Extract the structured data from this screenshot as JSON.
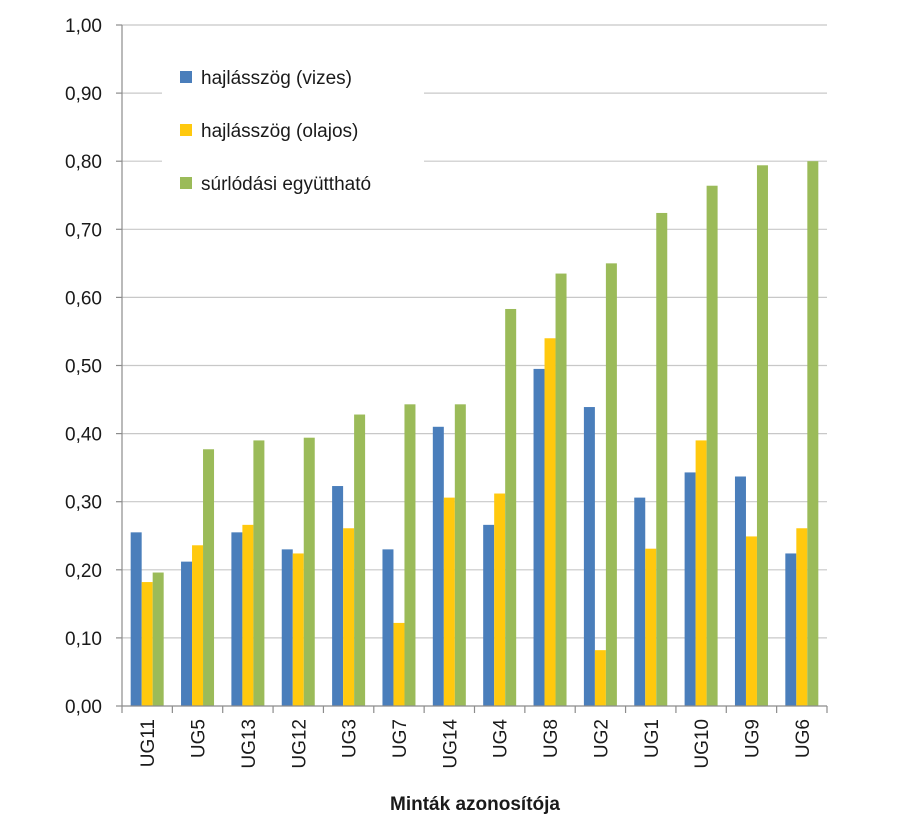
{
  "chart_data": {
    "type": "bar",
    "title": "",
    "xlabel": "Minták azonosítója",
    "ylabel": "",
    "ylim": [
      0,
      1.0
    ],
    "yticks": [
      "0,00",
      "0,10",
      "0,20",
      "0,30",
      "0,40",
      "0,50",
      "0,60",
      "0,70",
      "0,80",
      "0,90",
      "1,00"
    ],
    "grid": true,
    "legend_position": "top-left",
    "categories": [
      "UG11",
      "UG5",
      "UG13",
      "UG12",
      "UG3",
      "UG7",
      "UG14",
      "UG4",
      "UG8",
      "UG2",
      "UG1",
      "UG10",
      "UG9",
      "UG6"
    ],
    "series": [
      {
        "name": "hajlásszög (vizes)",
        "color": "#4a7ebb",
        "values": [
          0.255,
          0.212,
          0.255,
          0.23,
          0.323,
          0.23,
          0.41,
          0.266,
          0.495,
          0.439,
          0.306,
          0.343,
          0.337,
          0.224
        ]
      },
      {
        "name": "hajlásszög (olajos)",
        "color": "#ffc90e",
        "values": [
          0.182,
          0.236,
          0.266,
          0.224,
          0.261,
          0.122,
          0.306,
          0.312,
          0.54,
          0.082,
          0.231,
          0.39,
          0.249,
          0.261
        ]
      },
      {
        "name": "súrlódási együttható",
        "color": "#9bbb59",
        "values": [
          0.196,
          0.377,
          0.39,
          0.394,
          0.428,
          0.443,
          0.443,
          0.583,
          0.635,
          0.65,
          0.724,
          0.764,
          0.794,
          0.8
        ]
      }
    ]
  }
}
